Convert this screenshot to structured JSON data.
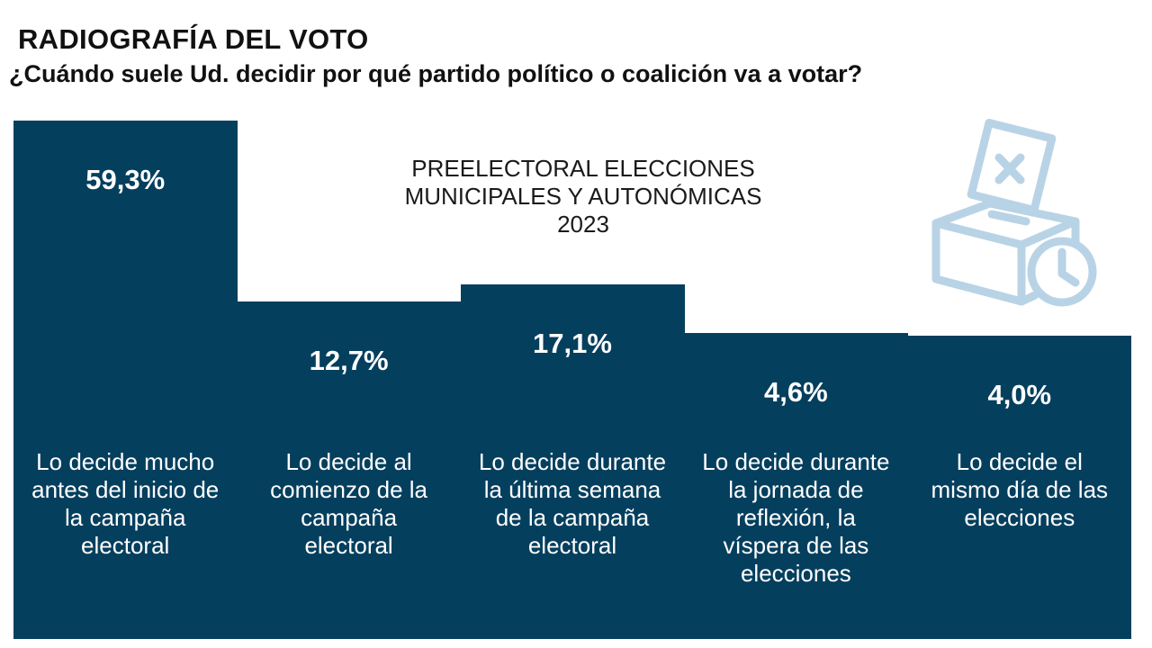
{
  "chart_data": {
    "type": "bar",
    "title": "RADIOGRAFÍA DEL VOTO",
    "subtitle": "¿Cuándo suele Ud. decidir por qué partido político o coalición va a votar?",
    "annotation": [
      "PREELECTORAL ELECCIONES",
      "MUNICIPALES Y AUTONÓMICAS",
      "2023"
    ],
    "categories": [
      "Lo decide mucho antes del inicio de la campaña electoral",
      "Lo decide al comienzo de la campaña electoral",
      "Lo decide durante la última semana de la campaña electoral",
      "Lo decide durante la jornada de reflexión, la víspera de las elecciones",
      "Lo decide el mismo día de las elecciones"
    ],
    "values": [
      59.3,
      12.7,
      17.1,
      4.6,
      4.0
    ],
    "value_labels": [
      "59,3%",
      "12,7%",
      "17,1%",
      "4,6%",
      "4,0%"
    ],
    "color": "#053f5e",
    "ylim": [
      -74,
      60
    ]
  }
}
